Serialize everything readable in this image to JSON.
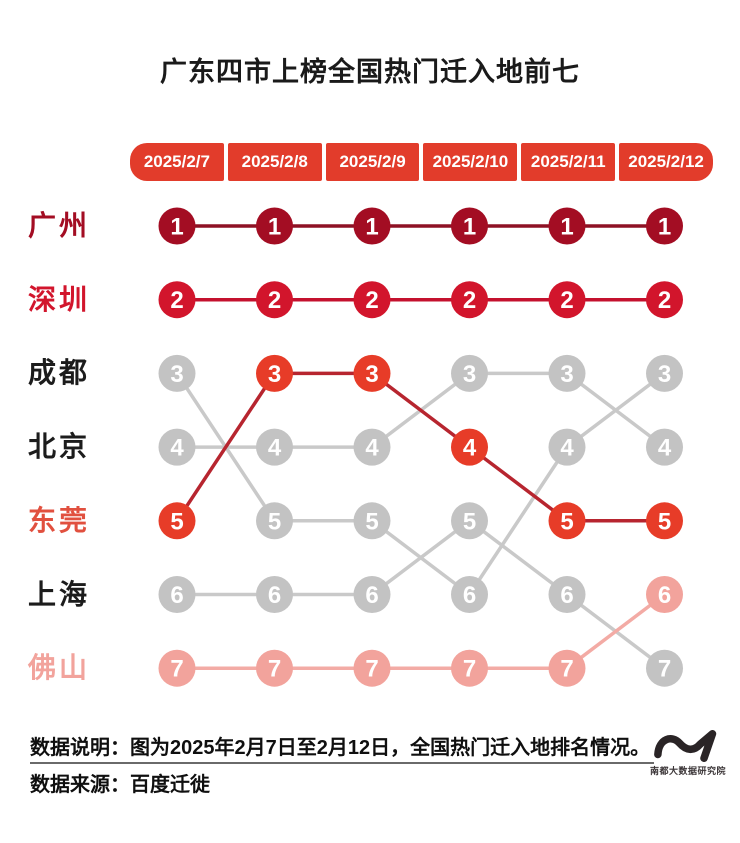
{
  "title": "广东四市上榜全国热门迁入地前七",
  "dates": [
    "2025/2/7",
    "2025/2/8",
    "2025/2/9",
    "2025/2/10",
    "2025/2/11",
    "2025/2/12"
  ],
  "chart_data": {
    "type": "line",
    "subtype": "bump-rank-chart",
    "x": [
      "2025/2/7",
      "2025/2/8",
      "2025/2/9",
      "2025/2/10",
      "2025/2/11",
      "2025/2/12"
    ],
    "y_is_rank": true,
    "rank_range": [
      1,
      7
    ],
    "series": [
      {
        "name": "广州",
        "slug": "guangzhou",
        "ranks": [
          1,
          1,
          1,
          1,
          1,
          1
        ],
        "circle_color": "#a30d23",
        "line_color": "#8e1124",
        "label_color": "#a30d23"
      },
      {
        "name": "深圳",
        "slug": "shenzhen",
        "ranks": [
          2,
          2,
          2,
          2,
          2,
          2
        ],
        "circle_color": "#d2152c",
        "line_color": "#c4112e",
        "label_color": "#d2152c"
      },
      {
        "name": "成都",
        "slug": "chengdu",
        "ranks": [
          3,
          5,
          5,
          6,
          4,
          3
        ],
        "circle_color": "#c3c3c3",
        "line_color": "#c9c9c9",
        "label_color": "#1c1c1c"
      },
      {
        "name": "北京",
        "slug": "beijing",
        "ranks": [
          4,
          4,
          4,
          3,
          3,
          4
        ],
        "circle_color": "#c3c3c3",
        "line_color": "#c9c9c9",
        "label_color": "#1c1c1c"
      },
      {
        "name": "东莞",
        "slug": "dongguan",
        "ranks": [
          5,
          3,
          3,
          4,
          5,
          5
        ],
        "circle_color": "#e73c28",
        "line_color": "#b7252f",
        "label_color": "#e1503f"
      },
      {
        "name": "上海",
        "slug": "shanghai",
        "ranks": [
          6,
          6,
          6,
          5,
          6,
          7
        ],
        "circle_color": "#c3c3c3",
        "line_color": "#c9c9c9",
        "label_color": "#1c1c1c"
      },
      {
        "name": "佛山",
        "slug": "foshan",
        "ranks": [
          7,
          7,
          7,
          7,
          7,
          6
        ],
        "circle_color": "#f2a39c",
        "line_color": "#f3aba5",
        "label_color": "#f2a39c"
      }
    ]
  },
  "footer": {
    "note": "数据说明：图为2025年2月7日至2月12日，全国热门迁入地排名情况。",
    "source": "数据来源：百度迁徙",
    "logo_text": "南都大数据研究院"
  },
  "colors": {
    "header_bg": "#e23c2b",
    "title": "#1a1a1a",
    "logo": "#2a2426"
  }
}
